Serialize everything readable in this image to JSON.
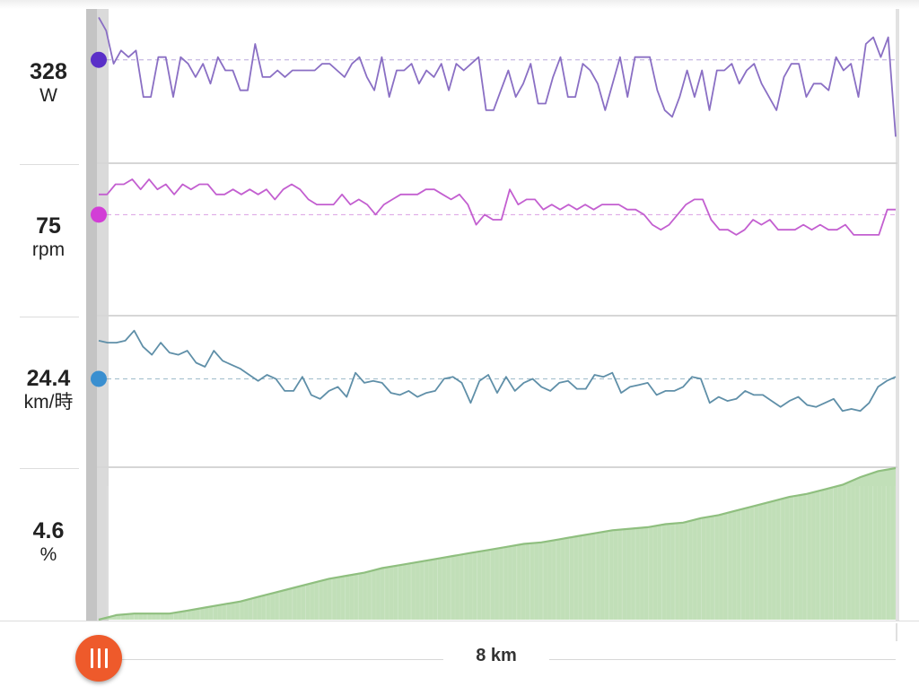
{
  "metrics": [
    {
      "value": "328",
      "unit": "W",
      "color": "#5a2fc8",
      "line_color": "#8a6fc4"
    },
    {
      "value": "75",
      "unit": "rpm",
      "color": "#d23ed6",
      "line_color": "#c35fd0"
    },
    {
      "value": "24.4",
      "unit": "km/時",
      "color": "#3a8fd0",
      "line_color": "#5f8fa8"
    },
    {
      "value": "4.6",
      "unit": "%",
      "color": "#a6d29a",
      "line_color": "#8fbf7f"
    }
  ],
  "distance_label": "8 km",
  "chart_data": [
    {
      "type": "line",
      "series": [
        {
          "values": [
            360,
            350,
            325,
            335,
            330,
            335,
            300,
            300,
            330,
            330,
            300,
            330,
            325,
            315,
            325,
            310,
            330,
            320,
            320,
            305,
            305,
            340,
            315,
            315,
            320,
            315,
            320,
            320,
            320,
            320,
            325,
            325,
            320,
            315,
            325,
            330,
            315,
            305,
            330,
            300,
            320,
            320,
            325,
            310,
            320,
            315,
            325,
            305,
            325,
            320,
            325,
            330,
            290,
            290,
            305,
            320,
            300,
            310,
            325,
            295,
            295,
            315,
            330,
            300,
            300,
            325,
            320,
            310,
            290,
            310,
            330,
            300,
            330,
            330,
            330,
            305,
            290,
            285,
            300,
            320,
            300,
            320,
            290,
            320,
            320,
            325,
            310,
            320,
            325,
            310,
            300,
            290,
            315,
            325,
            325,
            300,
            310,
            310,
            305,
            330,
            320,
            325,
            300,
            340,
            345,
            330,
            345,
            270
          ]
        }
      ],
      "reference": 328
    },
    {
      "type": "line",
      "series": [
        {
          "values": [
            79,
            79,
            81,
            81,
            82,
            80,
            82,
            80,
            81,
            79,
            81,
            80,
            81,
            81,
            79,
            79,
            80,
            79,
            80,
            79,
            80,
            78,
            80,
            81,
            80,
            78,
            77,
            77,
            77,
            79,
            77,
            78,
            77,
            75,
            77,
            78,
            79,
            79,
            79,
            80,
            80,
            79,
            78,
            79,
            77,
            73,
            75,
            74,
            74,
            80,
            77,
            78,
            78,
            76,
            77,
            76,
            77,
            76,
            77,
            76,
            77,
            77,
            77,
            76,
            76,
            75,
            73,
            72,
            73,
            75,
            77,
            78,
            78,
            74,
            72,
            72,
            71,
            72,
            74,
            73,
            74,
            72,
            72,
            72,
            73,
            72,
            73,
            72,
            72,
            73,
            71,
            71,
            71,
            71,
            76,
            76
          ]
        }
      ],
      "reference": 75
    },
    {
      "type": "line",
      "series": [
        {
          "values": [
            26.3,
            26.2,
            26.2,
            26.3,
            26.8,
            26.0,
            25.6,
            26.2,
            25.7,
            25.6,
            25.8,
            25.2,
            25.0,
            25.8,
            25.3,
            25.1,
            24.9,
            24.6,
            24.3,
            24.6,
            24.4,
            23.8,
            23.8,
            24.5,
            23.6,
            23.4,
            23.8,
            24.0,
            23.5,
            24.7,
            24.2,
            24.3,
            24.2,
            23.7,
            23.6,
            23.8,
            23.5,
            23.7,
            23.8,
            24.4,
            24.5,
            24.2,
            23.2,
            24.3,
            24.6,
            23.7,
            24.5,
            23.8,
            24.2,
            24.4,
            24.0,
            23.8,
            24.2,
            24.3,
            23.9,
            23.9,
            24.6,
            24.5,
            24.7,
            23.7,
            24.0,
            24.1,
            24.2,
            23.6,
            23.8,
            23.8,
            24.0,
            24.5,
            24.4,
            23.2,
            23.5,
            23.3,
            23.4,
            23.8,
            23.6,
            23.6,
            23.3,
            23.0,
            23.3,
            23.5,
            23.1,
            23.0,
            23.2,
            23.4,
            22.8,
            22.9,
            22.8,
            23.2,
            24.0,
            24.3,
            24.5
          ]
        }
      ],
      "reference": 24.4
    },
    {
      "type": "area",
      "series": [
        {
          "values": [
            0.0,
            0.3,
            0.4,
            0.4,
            0.4,
            0.6,
            0.8,
            1.0,
            1.2,
            1.5,
            1.8,
            2.1,
            2.4,
            2.7,
            2.9,
            3.1,
            3.4,
            3.6,
            3.8,
            4.0,
            4.2,
            4.4,
            4.6,
            4.8,
            5.0,
            5.1,
            5.3,
            5.5,
            5.7,
            5.9,
            6.0,
            6.1,
            6.3,
            6.4,
            6.7,
            6.9,
            7.2,
            7.5,
            7.8,
            8.1,
            8.3,
            8.6,
            8.9,
            9.4,
            9.8,
            10.0
          ]
        }
      ]
    }
  ]
}
